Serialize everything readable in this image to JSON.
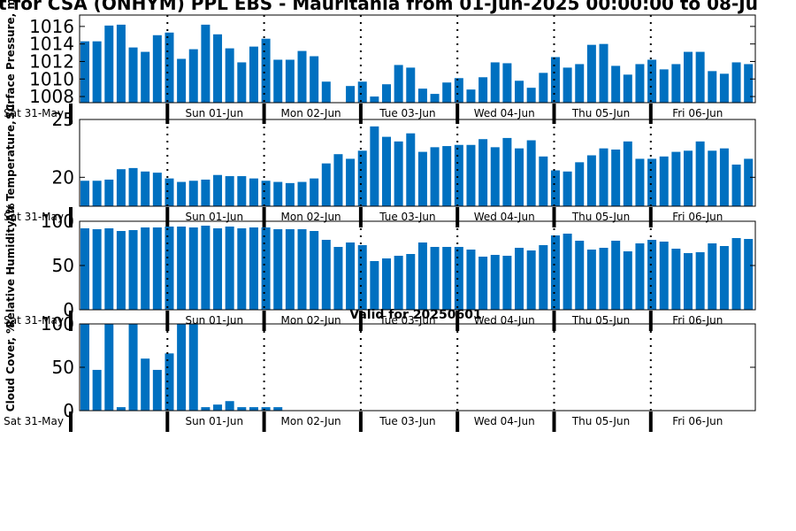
{
  "page": {
    "title": "t for CSA (ONHYM) PPL EBS  - Mauritania from 01-Jun-2025 00:00:00 to 08-Ju",
    "bar_color": "#0070c0"
  },
  "chart_data": [
    {
      "type": "bar",
      "ylabel": "Surface Pressure, m",
      "ylim": [
        1007.3,
        1017.3
      ],
      "yticks": [
        1008,
        1010,
        1012,
        1014,
        1016
      ],
      "x_day_labels": [
        "Sat 31-May",
        "Sun 01-Jun",
        "Mon 02-Jun",
        "Tue 03-Jun",
        "Wed 04-Jun",
        "Thu 05-Jun",
        "Fri 06-Jun"
      ],
      "values": [
        1014.3,
        1014.3,
        1016.1,
        1016.2,
        1013.6,
        1013.1,
        1015.0,
        1015.3,
        1012.3,
        1013.4,
        1016.2,
        1015.1,
        1013.5,
        1011.9,
        1013.7,
        1014.6,
        1012.2,
        1012.2,
        1013.2,
        1012.6,
        1009.7,
        1007.3,
        1009.2,
        1009.7,
        1008.0,
        1009.4,
        1011.6,
        1011.3,
        1008.9,
        1008.3,
        1009.6,
        1010.1,
        1008.8,
        1010.2,
        1011.9,
        1011.8,
        1009.8,
        1009.0,
        1010.7,
        1012.5,
        1011.3,
        1011.7,
        1013.9,
        1014.0,
        1011.5,
        1010.5,
        1011.7,
        1012.2,
        1011.1,
        1011.7,
        1013.1,
        1013.1,
        1010.9,
        1010.6,
        1011.9,
        1011.7
      ]
    },
    {
      "type": "bar",
      "ylabel": "Air Temperature, °C",
      "ylim": [
        17.5,
        25
      ],
      "yticks": [
        20,
        25
      ],
      "x_day_labels": [
        "Sat 31-May",
        "Sun 01-Jun",
        "Mon 02-Jun",
        "Tue 03-Jun",
        "Wed 04-Jun",
        "Thu 05-Jun",
        "Fri 06-Jun"
      ],
      "values": [
        19.7,
        19.7,
        19.8,
        20.7,
        20.8,
        20.5,
        20.4,
        19.9,
        19.6,
        19.7,
        19.8,
        20.2,
        20.1,
        20.1,
        19.9,
        19.7,
        19.6,
        19.5,
        19.6,
        19.9,
        21.2,
        22.0,
        21.6,
        22.3,
        24.4,
        23.5,
        23.1,
        23.8,
        22.2,
        22.6,
        22.7,
        22.8,
        22.8,
        23.3,
        22.6,
        23.4,
        22.5,
        23.2,
        21.8,
        20.6,
        20.5,
        21.3,
        21.9,
        22.5,
        22.4,
        23.1,
        21.6,
        21.6,
        21.8,
        22.2,
        22.3,
        23.1,
        22.3,
        22.5,
        21.1,
        21.6
      ]
    },
    {
      "type": "bar",
      "ylabel": "Relative Humidity, %",
      "ylim": [
        0,
        100
      ],
      "yticks": [
        0,
        50,
        100
      ],
      "x_day_labels": [
        "Sat 31-May",
        "Sun 01-Jun",
        "Mon 02-Jun",
        "Tue 03-Jun",
        "Wed 04-Jun",
        "Thu 05-Jun",
        "Fri 06-Jun"
      ],
      "values": [
        92,
        91,
        92,
        89,
        90,
        93,
        93,
        94,
        94,
        93,
        95,
        92,
        94,
        92,
        93,
        93,
        91,
        91,
        91,
        89,
        79,
        71,
        76,
        73,
        55,
        58,
        61,
        63,
        76,
        71,
        71,
        71,
        68,
        60,
        62,
        61,
        70,
        67,
        73,
        84,
        86,
        78,
        68,
        70,
        78,
        66,
        75,
        79,
        77,
        69,
        64,
        65,
        75,
        72,
        81,
        80
      ]
    },
    {
      "type": "bar",
      "ylabel": "Cloud Cover, %",
      "subtitle": "Valid for 20250601",
      "ylim": [
        0,
        100
      ],
      "yticks": [
        0,
        50,
        100
      ],
      "x_day_labels": [
        "Sat 31-May",
        "Sun 01-Jun",
        "Mon 02-Jun",
        "Tue 03-Jun",
        "Wed 04-Jun",
        "Thu 05-Jun",
        "Fri 06-Jun"
      ],
      "values": [
        100,
        47,
        100,
        4,
        100,
        60,
        47,
        66,
        100,
        100,
        4,
        7,
        11,
        4,
        4,
        4,
        4
      ]
    }
  ]
}
